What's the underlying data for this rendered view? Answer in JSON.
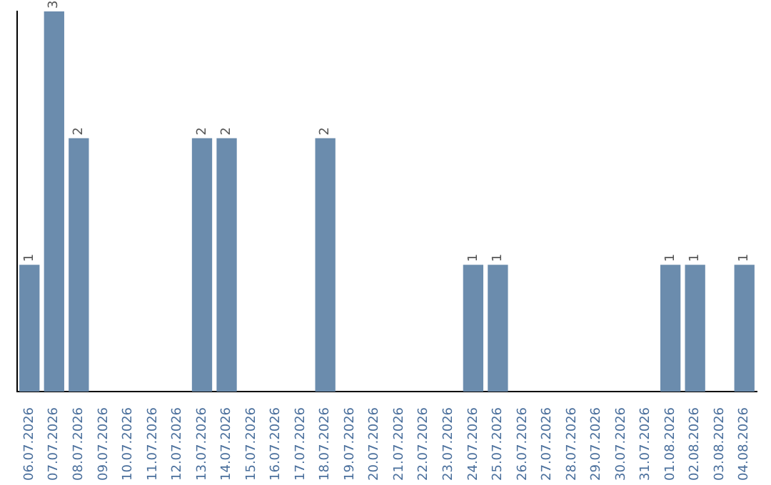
{
  "chart_data": {
    "type": "bar",
    "categories": [
      "06.07.2026",
      "07.07.2026",
      "08.07.2026",
      "09.07.2026",
      "10.07.2026",
      "11.07.2026",
      "12.07.2026",
      "13.07.2026",
      "14.07.2026",
      "15.07.2026",
      "16.07.2026",
      "17.07.2026",
      "18.07.2026",
      "19.07.2026",
      "20.07.2026",
      "21.07.2026",
      "22.07.2026",
      "23.07.2026",
      "24.07.2026",
      "25.07.2026",
      "26.07.2026",
      "27.07.2026",
      "28.07.2026",
      "29.07.2026",
      "30.07.2026",
      "31.07.2026",
      "01.08.2026",
      "02.08.2026",
      "03.08.2026",
      "04.08.2026"
    ],
    "values": [
      1,
      3,
      2,
      0,
      0,
      0,
      0,
      2,
      2,
      0,
      0,
      0,
      2,
      0,
      0,
      0,
      0,
      0,
      1,
      1,
      0,
      0,
      0,
      0,
      0,
      0,
      1,
      1,
      0,
      1
    ],
    "value_labels": [
      "1",
      "3",
      "2",
      null,
      null,
      null,
      null,
      "2",
      "2",
      null,
      null,
      null,
      "2",
      null,
      null,
      null,
      null,
      null,
      "1",
      "1",
      null,
      null,
      null,
      null,
      null,
      null,
      "1",
      "1",
      null,
      "1"
    ],
    "color": "#6b8cad",
    "grid": false,
    "legend": false
  }
}
